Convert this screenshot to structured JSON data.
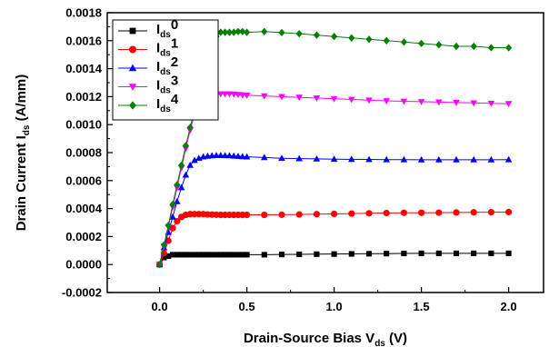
{
  "chart_data": {
    "type": "line",
    "xlabel": {
      "main": "Drain-Source Bias V",
      "sub": "ds",
      "tail": " (V)"
    },
    "ylabel": {
      "main": "Drain Current I",
      "sub": "ds",
      "tail": " (A/mm)"
    },
    "xlim": [
      -0.3,
      2.2
    ],
    "ylim": [
      -0.0002,
      0.0018
    ],
    "x_ticks": [
      0.0,
      0.5,
      1.0,
      1.5,
      2.0
    ],
    "x_tick_labels": [
      "0.0",
      "0.5",
      "1.0",
      "1.5",
      "2.0"
    ],
    "y_ticks": [
      -0.0002,
      0.0,
      0.0002,
      0.0004,
      0.0006,
      0.0008,
      0.001,
      0.0012,
      0.0014,
      0.0016,
      0.0018
    ],
    "y_tick_labels": [
      "-0.0002",
      "0.0000",
      "0.0002",
      "0.0004",
      "0.0006",
      "0.0008",
      "0.0010",
      "0.0012",
      "0.0014",
      "0.0016",
      "0.0018"
    ],
    "grid": false,
    "legend_position": "top-left",
    "series": [
      {
        "legend": {
          "main": "I",
          "sub": "ds",
          "tail": "0"
        },
        "color": "#000000",
        "marker": "square",
        "x": [
          0,
          0.025,
          0.05,
          0.075,
          0.1,
          0.125,
          0.15,
          0.175,
          0.2,
          0.225,
          0.25,
          0.275,
          0.3,
          0.325,
          0.35,
          0.375,
          0.4,
          0.425,
          0.45,
          0.475,
          0.5,
          0.6,
          0.7,
          0.8,
          0.9,
          1.0,
          1.1,
          1.2,
          1.3,
          1.4,
          1.5,
          1.6,
          1.7,
          1.8,
          1.9,
          2.0
        ],
        "y": [
          0,
          5e-05,
          6e-05,
          7e-05,
          7e-05,
          7e-05,
          7e-05,
          7e-05,
          7e-05,
          7e-05,
          7e-05,
          7e-05,
          7e-05,
          7e-05,
          7e-05,
          7e-05,
          7e-05,
          7e-05,
          7e-05,
          7e-05,
          7e-05,
          7e-05,
          7.2e-05,
          7.3e-05,
          7.4e-05,
          7.5e-05,
          7.6e-05,
          7.7e-05,
          7.8e-05,
          7.9e-05,
          8e-05,
          8e-05,
          8e-05,
          8e-05,
          8e-05,
          8e-05
        ]
      },
      {
        "legend": {
          "main": "I",
          "sub": "ds",
          "tail": "1"
        },
        "color": "#ff0000",
        "marker": "circle",
        "x": [
          0,
          0.025,
          0.05,
          0.075,
          0.1,
          0.125,
          0.15,
          0.175,
          0.2,
          0.225,
          0.25,
          0.275,
          0.3,
          0.325,
          0.35,
          0.375,
          0.4,
          0.425,
          0.45,
          0.475,
          0.5,
          0.6,
          0.7,
          0.8,
          0.9,
          1.0,
          1.1,
          1.2,
          1.3,
          1.4,
          1.5,
          1.6,
          1.7,
          1.8,
          1.9,
          2.0
        ],
        "y": [
          0,
          8e-05,
          0.00017,
          0.00026,
          0.00031,
          0.00034,
          0.000355,
          0.00036,
          0.00036,
          0.00036,
          0.00036,
          0.000358,
          0.000357,
          0.000356,
          0.000355,
          0.000355,
          0.000355,
          0.000355,
          0.000355,
          0.000355,
          0.000355,
          0.000355,
          0.000356,
          0.000358,
          0.00036,
          0.000362,
          0.000364,
          0.000366,
          0.000368,
          0.00037,
          0.00037,
          0.000371,
          0.000372,
          0.000373,
          0.000374,
          0.000375
        ]
      },
      {
        "legend": {
          "main": "I",
          "sub": "ds",
          "tail": "2"
        },
        "color": "#0000ff",
        "marker": "triangle-up",
        "x": [
          0,
          0.025,
          0.05,
          0.075,
          0.1,
          0.125,
          0.15,
          0.175,
          0.2,
          0.225,
          0.25,
          0.275,
          0.3,
          0.325,
          0.35,
          0.375,
          0.4,
          0.425,
          0.45,
          0.475,
          0.5,
          0.6,
          0.7,
          0.8,
          0.9,
          1.0,
          1.1,
          1.2,
          1.3,
          1.4,
          1.5,
          1.6,
          1.7,
          1.8,
          1.9,
          2.0
        ],
        "y": [
          0,
          0.00012,
          0.00023,
          0.00034,
          0.00045,
          0.00055,
          0.00064,
          0.00071,
          0.000745,
          0.00076,
          0.00077,
          0.000775,
          0.000778,
          0.00078,
          0.00078,
          0.000779,
          0.000778,
          0.000776,
          0.000774,
          0.000772,
          0.00077,
          0.000765,
          0.00076,
          0.000757,
          0.000755,
          0.000753,
          0.000752,
          0.000751,
          0.00075,
          0.00075,
          0.000749,
          0.000749,
          0.000749,
          0.000749,
          0.000749,
          0.00075
        ]
      },
      {
        "legend": {
          "main": "I",
          "sub": "ds",
          "tail": "3"
        },
        "color": "#ff00ff",
        "marker": "triangle-down",
        "x": [
          0,
          0.025,
          0.05,
          0.075,
          0.1,
          0.125,
          0.15,
          0.175,
          0.2,
          0.225,
          0.25,
          0.275,
          0.3,
          0.325,
          0.35,
          0.375,
          0.4,
          0.425,
          0.45,
          0.475,
          0.5,
          0.6,
          0.7,
          0.8,
          0.9,
          1.0,
          1.1,
          1.2,
          1.3,
          1.4,
          1.5,
          1.6,
          1.7,
          1.8,
          1.9,
          2.0
        ],
        "y": [
          0,
          0.00013,
          0.00027,
          0.00041,
          0.00055,
          0.00069,
          0.00083,
          0.00096,
          0.00107,
          0.00114,
          0.00118,
          0.0012,
          0.00121,
          0.001215,
          0.00122,
          0.00122,
          0.00122,
          0.001218,
          0.001215,
          0.001212,
          0.00121,
          0.001205,
          0.0012,
          0.001195,
          0.00119,
          0.001185,
          0.00118,
          0.001175,
          0.00117,
          0.001167,
          0.001164,
          0.001161,
          0.001158,
          0.001155,
          0.001152,
          0.00115
        ]
      },
      {
        "legend": {
          "main": "I",
          "sub": "ds",
          "tail": "4"
        },
        "color": "#008000",
        "marker": "diamond",
        "x": [
          0,
          0.025,
          0.05,
          0.075,
          0.1,
          0.125,
          0.15,
          0.175,
          0.2,
          0.225,
          0.25,
          0.275,
          0.3,
          0.325,
          0.35,
          0.375,
          0.4,
          0.425,
          0.45,
          0.475,
          0.5,
          0.6,
          0.7,
          0.8,
          0.9,
          1.0,
          1.1,
          1.2,
          1.3,
          1.4,
          1.5,
          1.6,
          1.7,
          1.8,
          1.9,
          2.0
        ],
        "y": [
          0,
          0.00014,
          0.00028,
          0.00043,
          0.00057,
          0.00071,
          0.00085,
          0.00098,
          0.00111,
          0.00123,
          0.00134,
          0.00145,
          0.00155,
          0.00163,
          0.00166,
          0.00166,
          0.00166,
          0.00166,
          0.001665,
          0.001665,
          0.00166,
          0.001665,
          0.001658,
          0.00165,
          0.00164,
          0.00163,
          0.00162,
          0.00161,
          0.0016,
          0.00159,
          0.00158,
          0.00157,
          0.00156,
          0.00156,
          0.00155,
          0.00155
        ]
      }
    ]
  }
}
